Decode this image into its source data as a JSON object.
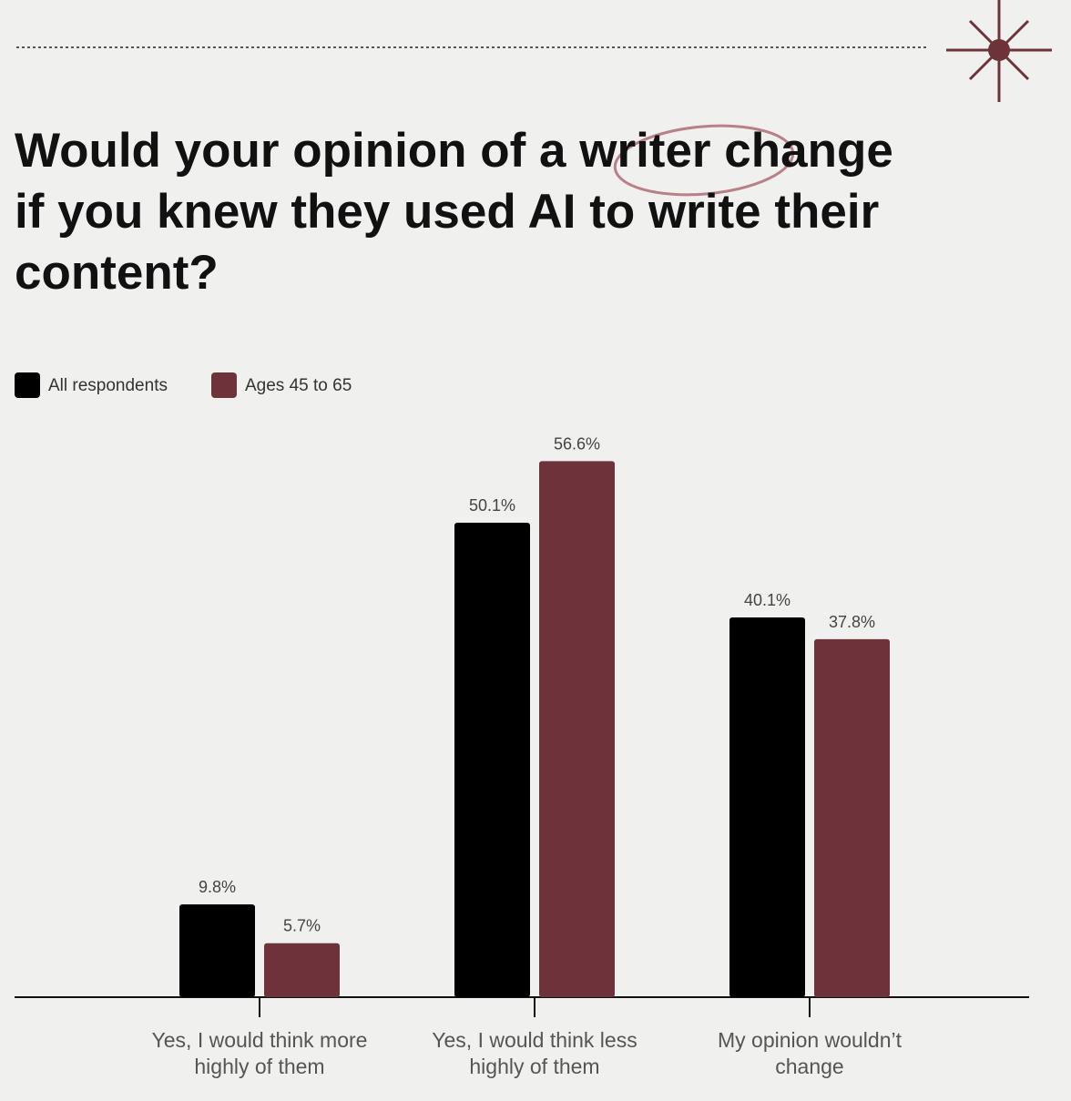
{
  "chart_data": {
    "type": "bar",
    "title": "Would your opinion of a writer change if you knew they used AI to write their content?",
    "categories": [
      "Yes, I would think more highly of them",
      "Yes, I would think less highly of them",
      "My opinion wouldn’t change"
    ],
    "series": [
      {
        "name": "All respondents",
        "color": "#000000",
        "values": [
          9.8,
          50.1,
          40.1
        ],
        "value_labels": [
          "9.8%",
          "50.1%",
          "40.1%"
        ]
      },
      {
        "name": "Ages 45 to 65",
        "color": "#6e333a",
        "values": [
          5.7,
          56.6,
          37.8
        ],
        "value_labels": [
          "5.7%",
          "56.6%",
          "37.8%"
        ]
      }
    ],
    "ylim": [
      0,
      60
    ]
  }
}
